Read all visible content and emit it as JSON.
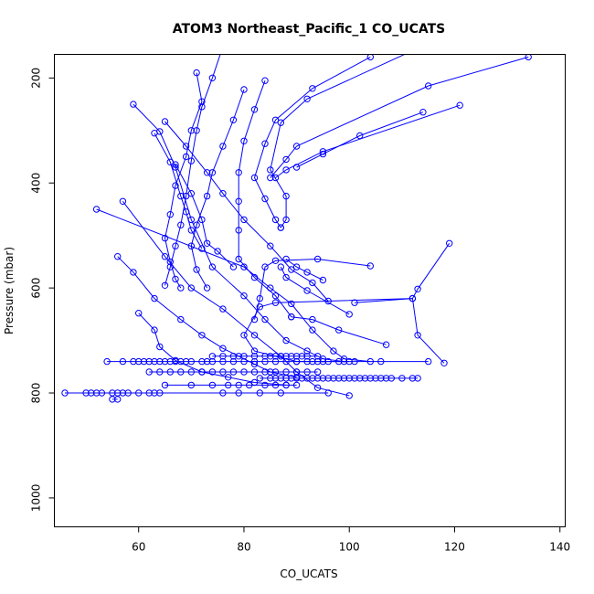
{
  "chart_data": {
    "type": "line",
    "title": "ATOM3 Northeast_Pacific_1 CO_UCATS",
    "xlabel": "CO_UCATS",
    "ylabel": "Pressure (mbar)",
    "xlim": [
      44,
      141
    ],
    "ylim": [
      1055,
      155
    ],
    "y_inverted": true,
    "x_ticks": [
      60,
      80,
      100,
      120,
      140
    ],
    "y_ticks": [
      200,
      400,
      600,
      800,
      1000
    ],
    "grid": false,
    "color": "#0000ff",
    "marker": "open-circle",
    "series": [
      {
        "points": [
          [
            59,
            250
          ],
          [
            64,
            302
          ],
          [
            67,
            370
          ],
          [
            70,
            470
          ],
          [
            74,
            560
          ],
          [
            80,
            615
          ],
          [
            84,
            660
          ],
          [
            88,
            700
          ],
          [
            92,
            720
          ],
          [
            95,
            735
          ],
          [
            99,
            740
          ]
        ]
      },
      {
        "points": [
          [
            52,
            450
          ],
          [
            80,
            560
          ],
          [
            85,
            600
          ],
          [
            89,
            630
          ],
          [
            93,
            680
          ],
          [
            97,
            720
          ],
          [
            99,
            735
          ],
          [
            104,
            740
          ]
        ]
      },
      {
        "points": [
          [
            57,
            435
          ],
          [
            65,
            540
          ],
          [
            70,
            600
          ],
          [
            76,
            640
          ],
          [
            82,
            690
          ],
          [
            87,
            730
          ],
          [
            90,
            760
          ],
          [
            94,
            790
          ],
          [
            100,
            805
          ]
        ]
      },
      {
        "points": [
          [
            60,
            648
          ],
          [
            63,
            680
          ],
          [
            64,
            712
          ],
          [
            67,
            738
          ],
          [
            72,
            760
          ],
          [
            77,
            770
          ],
          [
            82,
            780
          ],
          [
            88,
            785
          ]
        ]
      },
      {
        "points": [
          [
            56,
            540
          ],
          [
            59,
            570
          ],
          [
            63,
            620
          ],
          [
            68,
            660
          ],
          [
            72,
            690
          ],
          [
            76,
            715
          ],
          [
            79,
            730
          ],
          [
            82,
            745
          ],
          [
            85,
            760
          ],
          [
            90,
            770
          ]
        ]
      },
      {
        "points": [
          [
            65,
            283
          ],
          [
            69,
            330
          ],
          [
            73,
            380
          ],
          [
            76,
            420
          ],
          [
            80,
            470
          ],
          [
            85,
            520
          ],
          [
            89,
            565
          ],
          [
            93,
            590
          ],
          [
            96,
            625
          ]
        ]
      },
      {
        "points": [
          [
            71,
            190
          ],
          [
            72,
            245
          ],
          [
            70,
            300
          ],
          [
            69,
            350
          ],
          [
            67,
            405
          ],
          [
            66,
            460
          ],
          [
            65,
            505
          ],
          [
            66,
            550
          ],
          [
            67,
            583
          ],
          [
            68,
            600
          ]
        ]
      },
      {
        "points": [
          [
            76,
            140
          ],
          [
            74,
            200
          ],
          [
            72,
            255
          ],
          [
            71,
            300
          ],
          [
            70,
            358
          ],
          [
            69,
            425
          ],
          [
            68,
            480
          ],
          [
            67,
            520
          ],
          [
            66,
            560
          ],
          [
            65,
            595
          ]
        ]
      },
      {
        "points": [
          [
            80,
            222
          ],
          [
            78,
            280
          ],
          [
            76,
            330
          ],
          [
            74,
            380
          ],
          [
            73,
            425
          ],
          [
            71,
            480
          ],
          [
            70,
            520
          ],
          [
            71,
            565
          ],
          [
            73,
            600
          ]
        ]
      },
      {
        "points": [
          [
            84,
            205
          ],
          [
            82,
            260
          ],
          [
            80,
            320
          ],
          [
            79,
            380
          ],
          [
            79,
            435
          ],
          [
            79,
            490
          ],
          [
            79,
            545
          ],
          [
            82,
            580
          ],
          [
            86,
            615
          ],
          [
            89,
            655
          ]
        ]
      },
      {
        "points": [
          [
            104,
            160
          ],
          [
            93,
            220
          ],
          [
            86,
            280
          ],
          [
            84,
            325
          ],
          [
            82,
            390
          ],
          [
            84,
            430
          ],
          [
            86,
            470
          ],
          [
            87,
            485
          ]
        ]
      },
      {
        "points": [
          [
            112,
            148
          ],
          [
            92,
            240
          ],
          [
            87,
            285
          ],
          [
            85,
            375
          ],
          [
            88,
            425
          ],
          [
            88,
            470
          ],
          [
            87,
            485
          ]
        ]
      },
      {
        "points": [
          [
            121,
            252
          ],
          [
            95,
            340
          ],
          [
            88,
            375
          ],
          [
            86,
            390
          ]
        ]
      },
      {
        "points": [
          [
            134,
            160
          ],
          [
            115,
            215
          ],
          [
            90,
            330
          ],
          [
            88,
            355
          ],
          [
            85,
            390
          ]
        ]
      },
      {
        "points": [
          [
            119,
            515
          ],
          [
            113,
            602
          ],
          [
            112,
            620
          ],
          [
            86,
            628
          ],
          [
            83,
            636
          ],
          [
            80,
            690
          ],
          [
            82,
            720
          ],
          [
            90,
            740
          ],
          [
            101,
            740
          ],
          [
            106,
            740
          ],
          [
            115,
            740
          ]
        ]
      },
      {
        "points": [
          [
            114,
            265
          ],
          [
            102,
            310
          ],
          [
            95,
            345
          ],
          [
            90,
            370
          ]
        ]
      },
      {
        "points": [
          [
            107,
            708
          ],
          [
            98,
            680
          ],
          [
            93,
            660
          ],
          [
            89,
            655
          ]
        ]
      },
      {
        "points": [
          [
            118,
            743
          ],
          [
            113,
            690
          ],
          [
            112,
            620
          ],
          [
            101,
            628
          ]
        ]
      },
      {
        "points": [
          [
            104,
            558
          ],
          [
            94,
            545
          ],
          [
            86,
            548
          ],
          [
            84,
            560
          ],
          [
            83,
            620
          ],
          [
            82,
            660
          ]
        ]
      },
      {
        "points": [
          [
            100,
            650
          ],
          [
            92,
            605
          ],
          [
            88,
            580
          ],
          [
            87,
            560
          ]
        ]
      },
      {
        "points": [
          [
            95,
            585
          ],
          [
            92,
            570
          ],
          [
            90,
            560
          ],
          [
            88,
            545
          ]
        ]
      },
      {
        "points": [
          [
            67,
            365
          ],
          [
            70,
            420
          ],
          [
            72,
            470
          ],
          [
            73,
            515
          ],
          [
            75,
            530
          ],
          [
            78,
            560
          ]
        ]
      },
      {
        "points": [
          [
            63,
            305
          ],
          [
            66,
            360
          ],
          [
            68,
            425
          ],
          [
            69,
            455
          ],
          [
            70,
            490
          ],
          [
            72,
            525
          ]
        ]
      }
    ],
    "scatter_bands": [
      {
        "y": 740,
        "x": [
          54,
          57,
          59,
          60,
          61,
          62,
          63,
          64,
          65,
          66,
          67,
          68,
          69,
          70,
          72,
          73,
          74,
          76,
          78,
          80,
          82,
          84,
          86,
          88,
          90,
          92,
          93,
          94,
          95,
          96,
          98,
          100
        ]
      },
      {
        "y": 730,
        "x": [
          74,
          76,
          78,
          80,
          82,
          84,
          85,
          86,
          87,
          88,
          89,
          90,
          91,
          92,
          94
        ]
      },
      {
        "y": 760,
        "x": [
          62,
          64,
          66,
          68,
          70,
          72,
          74,
          76,
          78,
          80,
          82,
          84,
          86,
          88,
          90,
          92,
          94
        ]
      },
      {
        "y": 772,
        "x": [
          83,
          85,
          86,
          87,
          88,
          89,
          90,
          91,
          92,
          93,
          94,
          95,
          96,
          97,
          98,
          99,
          100,
          101,
          102,
          103,
          104,
          105,
          106,
          107,
          108,
          110,
          112,
          113
        ]
      },
      {
        "y": 785,
        "x": [
          65,
          70,
          74,
          77,
          79,
          81,
          84,
          86,
          88,
          90
        ]
      },
      {
        "y": 800,
        "x": [
          46,
          50,
          51,
          52,
          53,
          55,
          56,
          57,
          58,
          60,
          62,
          63,
          64,
          76,
          79,
          83,
          87,
          96
        ]
      },
      {
        "y": 812,
        "x": [
          55,
          56
        ]
      }
    ]
  }
}
